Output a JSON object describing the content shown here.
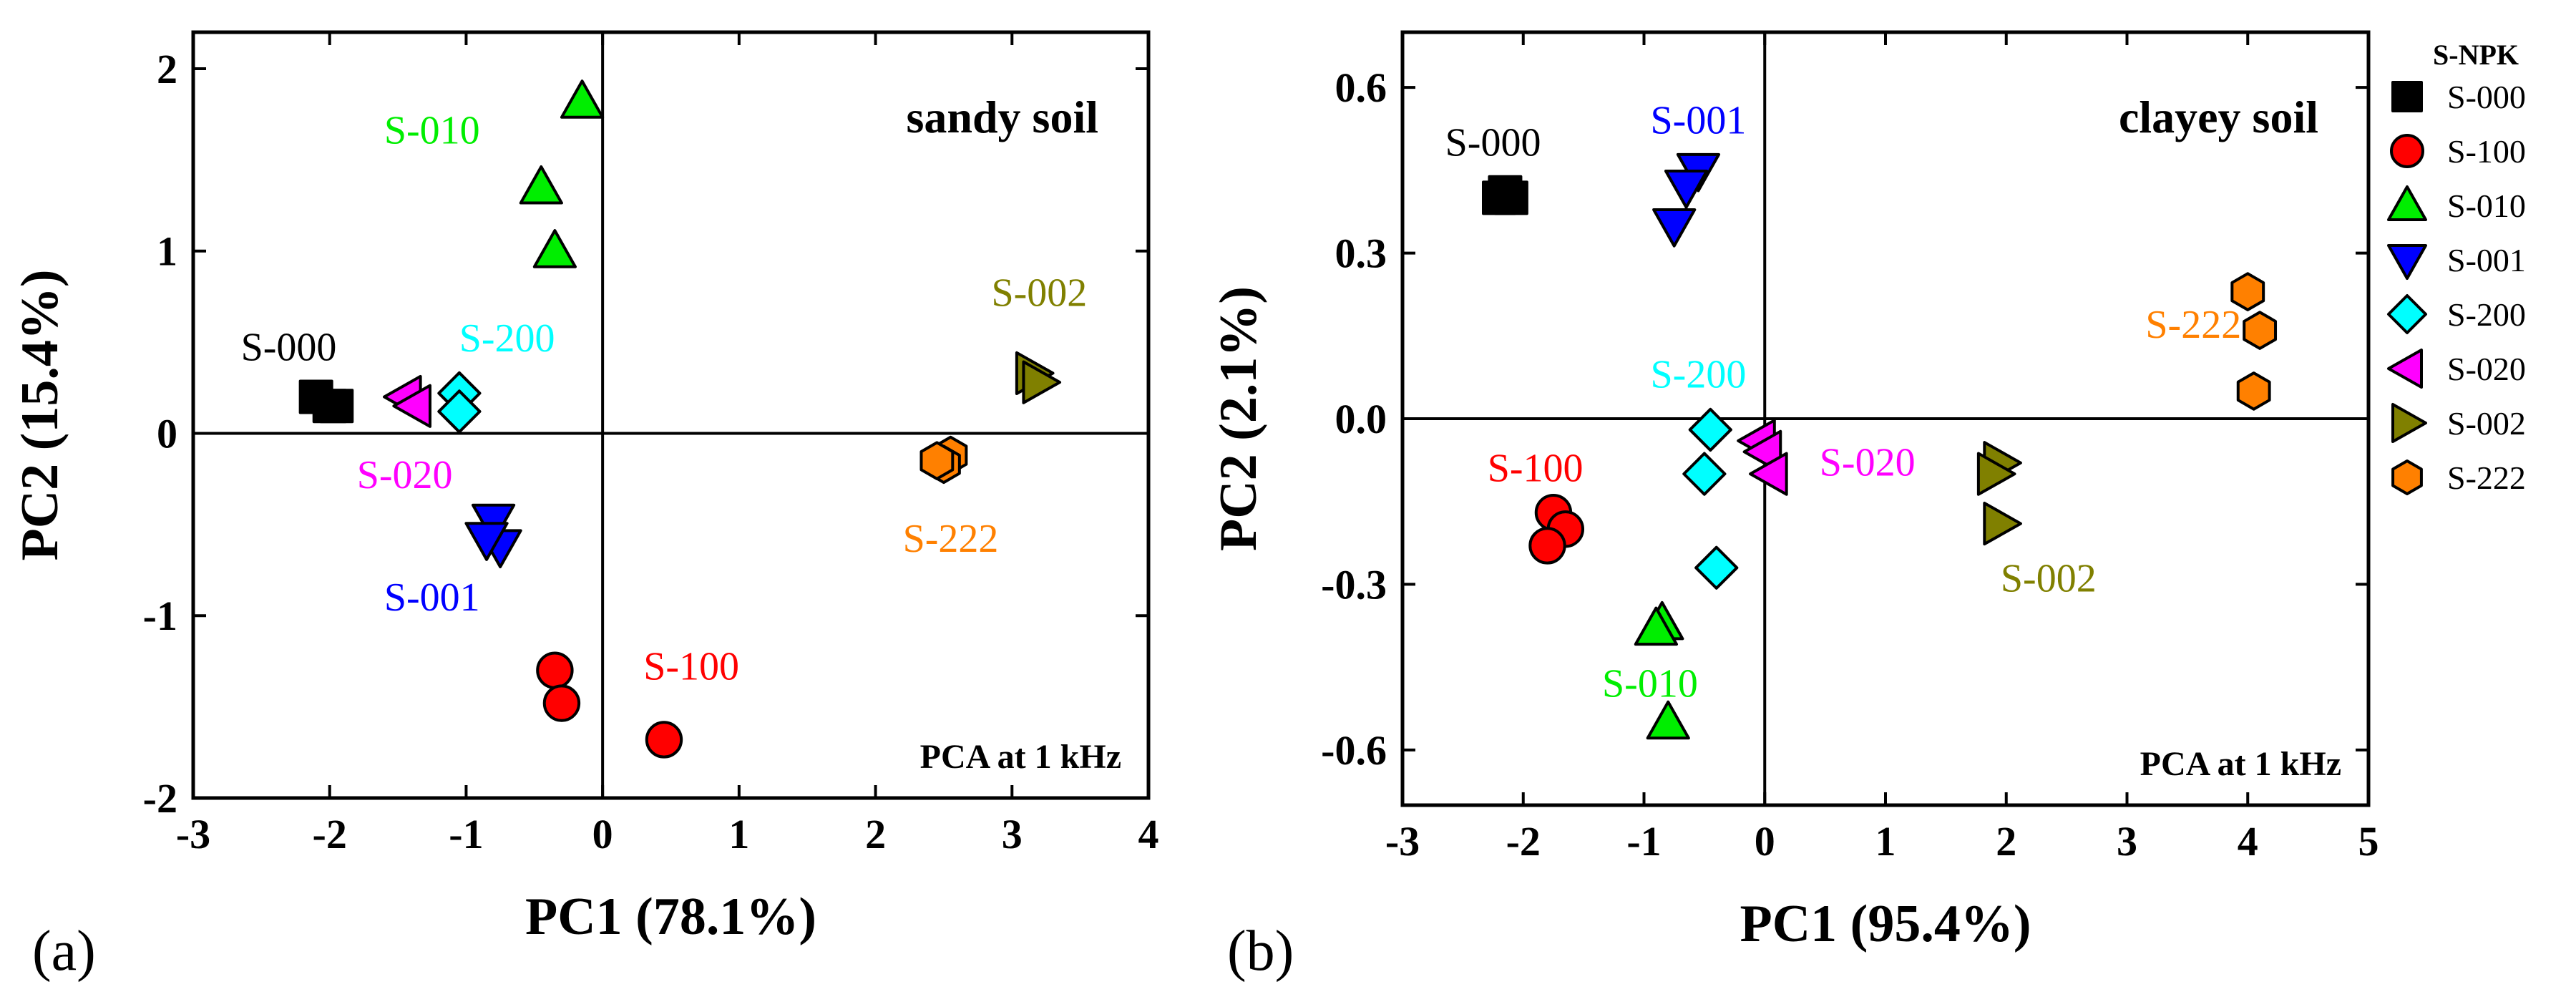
{
  "legend": {
    "title": "S-NPK",
    "entries": [
      {
        "name": "S-000",
        "marker": "square",
        "color": "#000000"
      },
      {
        "name": "S-100",
        "marker": "circle",
        "color": "#ff0000"
      },
      {
        "name": "S-010",
        "marker": "triangle-up",
        "color": "#00ee00"
      },
      {
        "name": "S-001",
        "marker": "triangle-down",
        "color": "#0000ff"
      },
      {
        "name": "S-200",
        "marker": "diamond",
        "color": "#00ffff"
      },
      {
        "name": "S-020",
        "marker": "triangle-left",
        "color": "#ff00ff"
      },
      {
        "name": "S-002",
        "marker": "triangle-right",
        "color": "#808000"
      },
      {
        "name": "S-222",
        "marker": "hexagon",
        "color": "#ff8000"
      }
    ]
  },
  "chart_data": [
    {
      "type": "scatter",
      "panel": "(a)",
      "title": "sandy soil",
      "note": "PCA at 1 kHz",
      "xlabel": "PC1 (78.1%)",
      "ylabel": "PC2 (15.4%)",
      "xlim": [
        -3,
        4
      ],
      "ylim": [
        -2,
        2.2
      ],
      "xticks": [
        -3,
        -2,
        -1,
        0,
        1,
        2,
        3,
        4
      ],
      "yticks": [
        -2,
        -1,
        0,
        1,
        2
      ],
      "series": [
        {
          "name": "S-000",
          "label_pos": [
            -2.3,
            0.47
          ],
          "points": [
            [
              -2.1,
              0.2
            ],
            [
              -2.0,
              0.15
            ],
            [
              -1.95,
              0.15
            ]
          ]
        },
        {
          "name": "S-100",
          "label_pos": [
            0.65,
            -1.28
          ],
          "points": [
            [
              -0.35,
              -1.3
            ],
            [
              -0.3,
              -1.48
            ],
            [
              0.45,
              -1.68
            ]
          ]
        },
        {
          "name": "S-010",
          "label_pos": [
            -1.25,
            1.66
          ],
          "points": [
            [
              -0.15,
              1.82
            ],
            [
              -0.45,
              1.35
            ],
            [
              -0.35,
              1.0
            ]
          ]
        },
        {
          "name": "S-001",
          "label_pos": [
            -1.25,
            -0.9
          ],
          "points": [
            [
              -0.8,
              -0.48
            ],
            [
              -0.75,
              -0.62
            ],
            [
              -0.85,
              -0.58
            ]
          ]
        },
        {
          "name": "S-200",
          "label_pos": [
            -0.7,
            0.52
          ],
          "points": [
            [
              -1.05,
              0.22
            ],
            [
              -1.05,
              0.12
            ]
          ]
        },
        {
          "name": "S-020",
          "label_pos": [
            -1.45,
            -0.23
          ],
          "points": [
            [
              -1.45,
              0.2
            ],
            [
              -1.38,
              0.15
            ]
          ]
        },
        {
          "name": "S-002",
          "label_pos": [
            3.2,
            0.77
          ],
          "points": [
            [
              3.15,
              0.33
            ],
            [
              3.2,
              0.28
            ]
          ]
        },
        {
          "name": "S-222",
          "label_pos": [
            2.55,
            -0.58
          ],
          "points": [
            [
              2.55,
              -0.12
            ],
            [
              2.5,
              -0.17
            ],
            [
              2.45,
              -0.15
            ]
          ]
        }
      ]
    },
    {
      "type": "scatter",
      "panel": "(b)",
      "title": "clayey soil",
      "note": "PCA at 1 kHz",
      "xlabel": "PC1 (95.4%)",
      "ylabel": "PC2 (2.1%)",
      "xlim": [
        -3,
        5
      ],
      "ylim": [
        -0.7,
        0.7
      ],
      "xticks": [
        -3,
        -2,
        -1,
        0,
        1,
        2,
        3,
        4,
        5
      ],
      "yticks": [
        -0.6,
        -0.3,
        0.0,
        0.3,
        0.6
      ],
      "series": [
        {
          "name": "S-000",
          "label_pos": [
            -2.25,
            0.5
          ],
          "points": [
            [
              -2.15,
              0.41
            ],
            [
              -2.1,
              0.4
            ],
            [
              -2.2,
              0.4
            ]
          ]
        },
        {
          "name": "S-100",
          "label_pos": [
            -1.9,
            -0.09
          ],
          "points": [
            [
              -1.75,
              -0.17
            ],
            [
              -1.65,
              -0.2
            ],
            [
              -1.8,
              -0.23
            ]
          ]
        },
        {
          "name": "S-010",
          "label_pos": [
            -0.95,
            -0.48
          ],
          "points": [
            [
              -0.85,
              -0.37
            ],
            [
              -0.9,
              -0.38
            ],
            [
              -0.8,
              -0.55
            ]
          ]
        },
        {
          "name": "S-001",
          "label_pos": [
            -0.55,
            0.54
          ],
          "points": [
            [
              -0.55,
              0.45
            ],
            [
              -0.65,
              0.42
            ],
            [
              -0.75,
              0.35
            ]
          ]
        },
        {
          "name": "S-200",
          "label_pos": [
            -0.55,
            0.08
          ],
          "points": [
            [
              -0.45,
              -0.02
            ],
            [
              -0.5,
              -0.1
            ],
            [
              -0.4,
              -0.27
            ]
          ]
        },
        {
          "name": "S-020",
          "label_pos": [
            0.85,
            -0.08
          ],
          "points": [
            [
              -0.05,
              -0.04
            ],
            [
              0.0,
              -0.06
            ],
            [
              0.05,
              -0.1
            ]
          ]
        },
        {
          "name": "S-002",
          "label_pos": [
            2.35,
            -0.29
          ],
          "points": [
            [
              1.95,
              -0.08
            ],
            [
              1.9,
              -0.1
            ],
            [
              1.95,
              -0.19
            ]
          ]
        },
        {
          "name": "S-222",
          "label_pos": [
            3.55,
            0.17
          ],
          "points": [
            [
              4.0,
              0.23
            ],
            [
              4.1,
              0.16
            ],
            [
              4.05,
              0.05
            ]
          ]
        }
      ]
    }
  ]
}
